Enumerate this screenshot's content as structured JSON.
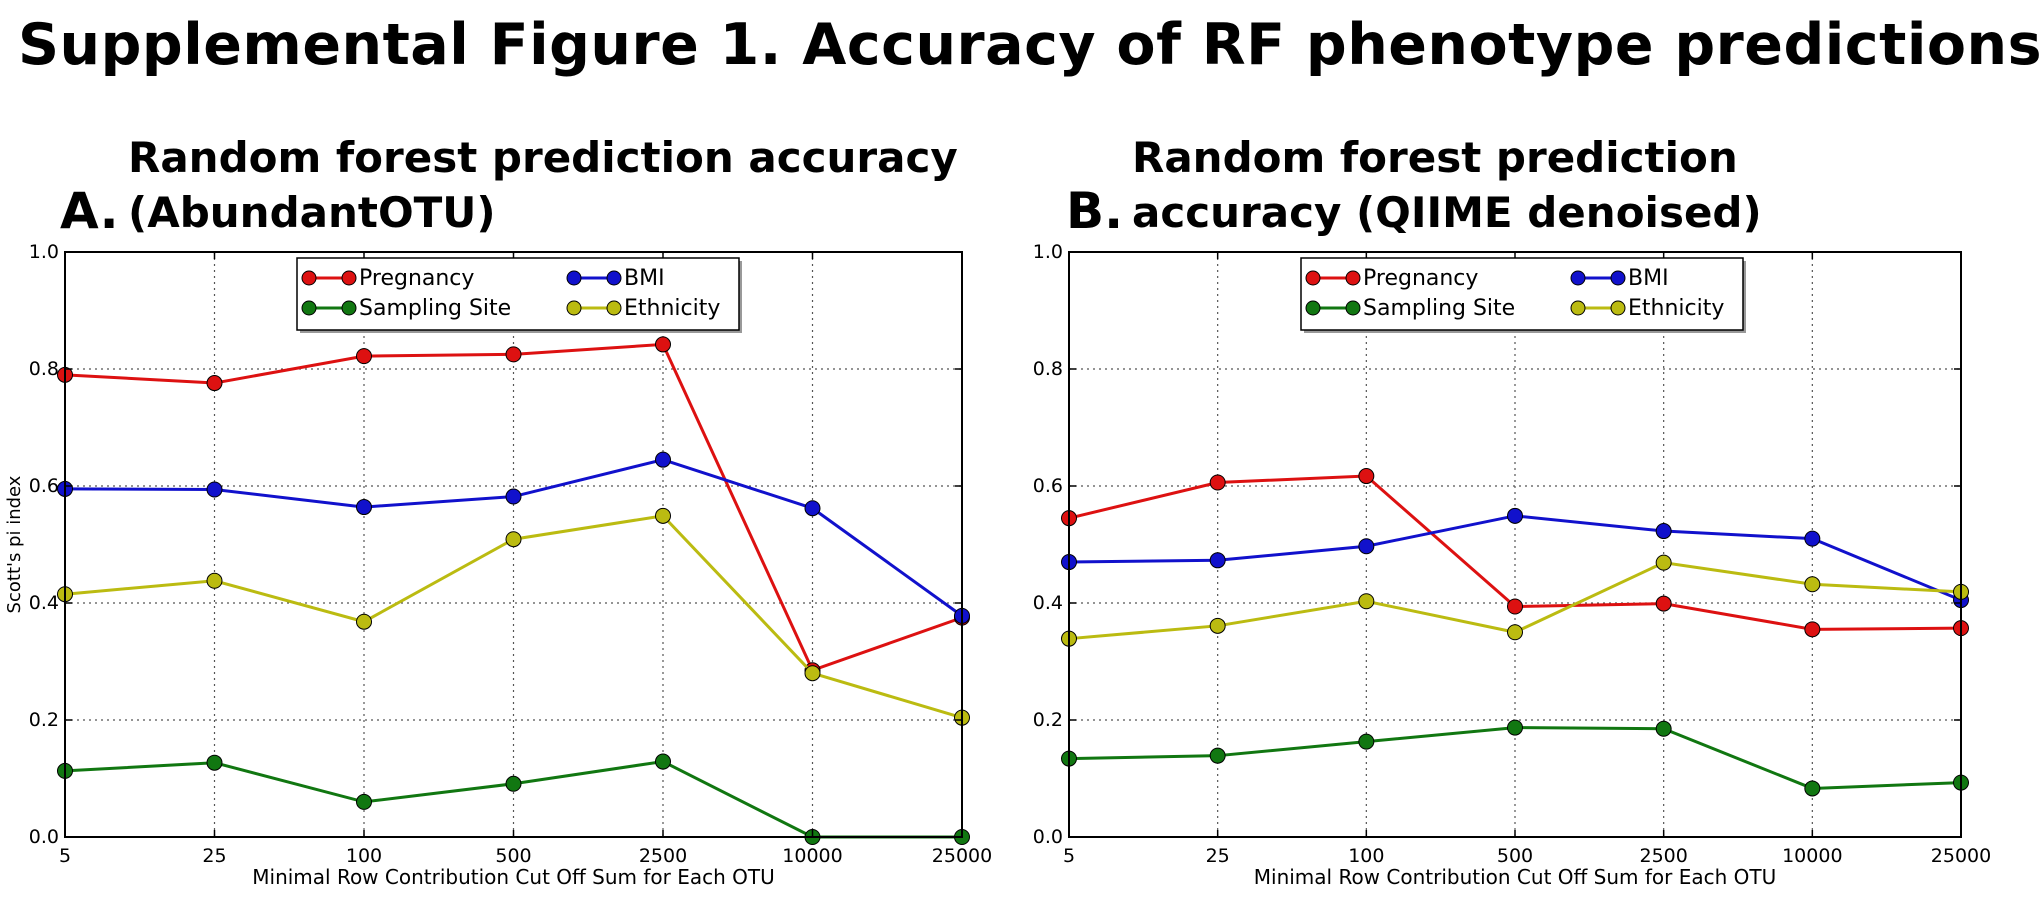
{
  "figure_title": "Supplemental Figure 1. Accuracy of RF phenotype predictions",
  "colors": {
    "pregnancy": "#dd1111",
    "bmi": "#1111cc",
    "sampling_site": "#117711",
    "ethnicity": "#bbbb11"
  },
  "chart_data": [
    {
      "type": "line",
      "panel_letter": "A.",
      "title": [
        "Random forest prediction accuracy",
        "(AbundantOTU)"
      ],
      "xlabel": "Minimal Row Contribution Cut Off Sum for Each OTU",
      "ylabel": "Scott's pi index",
      "categories": [
        "5",
        "25",
        "100",
        "500",
        "2500",
        "10000",
        "25000"
      ],
      "ylim": [
        0,
        1
      ],
      "yticks": [
        "0.0",
        "0.2",
        "0.4",
        "0.6",
        "0.8",
        "1.0"
      ],
      "grid": true,
      "legend_position": "top-center",
      "series": [
        {
          "name": "Pregnancy",
          "color": "#dd1111",
          "values": [
            0.79,
            0.776,
            0.822,
            0.825,
            0.842,
            0.285,
            0.375
          ]
        },
        {
          "name": "BMI",
          "color": "#1111cc",
          "values": [
            0.595,
            0.594,
            0.564,
            0.582,
            0.645,
            0.562,
            0.378
          ]
        },
        {
          "name": "Sampling Site",
          "color": "#117711",
          "values": [
            0.113,
            0.127,
            0.06,
            0.091,
            0.129,
            0.0,
            0.0
          ]
        },
        {
          "name": "Ethnicity",
          "color": "#bbbb11",
          "values": [
            0.415,
            0.438,
            0.368,
            0.509,
            0.549,
            0.28,
            0.204
          ]
        }
      ]
    },
    {
      "type": "line",
      "panel_letter": "B.",
      "title": [
        "Random forest prediction",
        "accuracy (QIIME denoised)"
      ],
      "xlabel": "Minimal Row Contribution Cut Off Sum for Each OTU",
      "ylabel": "",
      "categories": [
        "5",
        "25",
        "100",
        "500",
        "2500",
        "10000",
        "25000"
      ],
      "ylim": [
        0,
        1
      ],
      "yticks": [
        "0.0",
        "0.2",
        "0.4",
        "0.6",
        "0.8",
        "1.0"
      ],
      "grid": true,
      "legend_position": "top-center",
      "series": [
        {
          "name": "Pregnancy",
          "color": "#dd1111",
          "values": [
            0.545,
            0.606,
            0.617,
            0.394,
            0.399,
            0.355,
            0.357
          ]
        },
        {
          "name": "BMI",
          "color": "#1111cc",
          "values": [
            0.47,
            0.473,
            0.497,
            0.549,
            0.523,
            0.51,
            0.405
          ]
        },
        {
          "name": "Sampling Site",
          "color": "#117711",
          "values": [
            0.134,
            0.139,
            0.163,
            0.187,
            0.185,
            0.083,
            0.093
          ]
        },
        {
          "name": "Ethnicity",
          "color": "#bbbb11",
          "values": [
            0.339,
            0.361,
            0.403,
            0.35,
            0.469,
            0.432,
            0.419
          ]
        }
      ]
    }
  ]
}
